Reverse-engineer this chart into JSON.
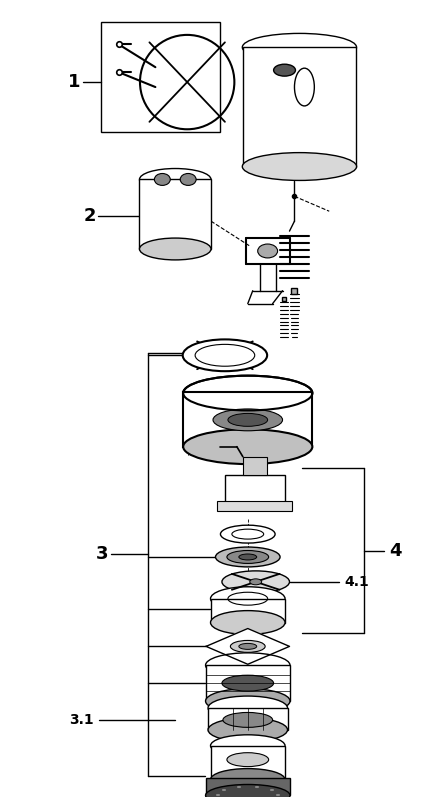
{
  "fig_width": 4.27,
  "fig_height": 8.0,
  "dpi": 100,
  "bg_color": "#ffffff",
  "line_color": "#000000",
  "label_1": "1",
  "label_2": "2",
  "label_3": "3",
  "label_31": "3.1",
  "label_41": "4.1",
  "label_4": "4"
}
